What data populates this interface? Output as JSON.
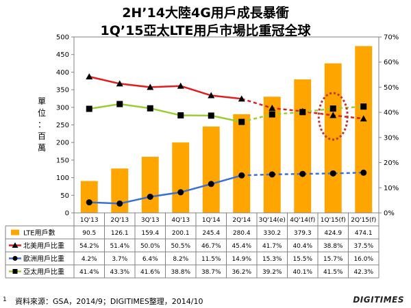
{
  "title_line1": "2H’14大陸4G用戶成長暴衝",
  "title_line2": "1Q’15亞太LTE用戶市場比重冠全球",
  "ylabel_chars": [
    "單",
    "位",
    "：",
    "百",
    "萬"
  ],
  "source": "資料來源：GSA，2014/9；DIGITIMES整理，2014/10",
  "page_number": "1",
  "logo_text": "DIGITIMES",
  "chart_data": {
    "type": "bar",
    "categories": [
      "1Q'13",
      "2Q'13",
      "3Q'13",
      "4Q'13",
      "1Q'14",
      "2Q'14",
      "3Q'14(e)",
      "4Q'14(f)",
      "1Q'15(f)",
      "2Q'15(f)"
    ],
    "y_left": {
      "min": 0,
      "max": 500,
      "ticks": [
        "0",
        "50",
        "100",
        "150",
        "200",
        "250",
        "300",
        "350",
        "400",
        "450",
        "500"
      ]
    },
    "y_right": {
      "min": 0,
      "max": 70,
      "ticks": [
        "0%",
        "10%",
        "20%",
        "30%",
        "40%",
        "50%",
        "60%",
        "70%"
      ]
    },
    "forecast_start_index": 5,
    "highlight_index": 8,
    "series": [
      {
        "name": "LTE用戶數",
        "type": "bar",
        "axis": "left",
        "color": "#FFA500",
        "marker": "square",
        "values": [
          90.5,
          126.1,
          159.4,
          200.1,
          245.4,
          280.4,
          330.2,
          379.3,
          424.9,
          474.1
        ],
        "labels": [
          "90.5",
          "126.1",
          "159.4",
          "200.1",
          "245.4",
          "280.4",
          "330.2",
          "379.3",
          "424.9",
          "474.1"
        ]
      },
      {
        "name": "北美用戶比重",
        "type": "line",
        "axis": "right",
        "color": "#E21B1B",
        "marker": "triangle",
        "values": [
          54.2,
          51.4,
          50.0,
          50.5,
          46.7,
          45.4,
          41.7,
          40.4,
          38.8,
          37.5
        ],
        "labels": [
          "54.2%",
          "51.4%",
          "50.0%",
          "50.5%",
          "46.7%",
          "45.4%",
          "41.7%",
          "40.4%",
          "38.8%",
          "37.5%"
        ]
      },
      {
        "name": "歐洲用戶比重",
        "type": "line",
        "axis": "right",
        "color": "#3A6FD8",
        "marker": "circle",
        "values": [
          4.2,
          3.7,
          6.4,
          8.2,
          11.5,
          14.9,
          15.3,
          15.5,
          15.7,
          16.0
        ],
        "labels": [
          "4.2%",
          "3.7%",
          "6.4%",
          "8.2%",
          "11.5%",
          "14.9%",
          "15.3%",
          "15.5%",
          "15.7%",
          "16.0%"
        ]
      },
      {
        "name": "亞太用戶比重",
        "type": "line",
        "axis": "right",
        "color": "#9ACD32",
        "marker": "square",
        "values": [
          41.4,
          43.3,
          41.6,
          38.8,
          38.7,
          36.2,
          39.2,
          40.1,
          41.5,
          42.3
        ],
        "labels": [
          "41.4%",
          "43.3%",
          "41.6%",
          "38.8%",
          "38.7%",
          "36.2%",
          "39.2%",
          "40.1%",
          "41.5%",
          "42.3%"
        ]
      }
    ]
  }
}
